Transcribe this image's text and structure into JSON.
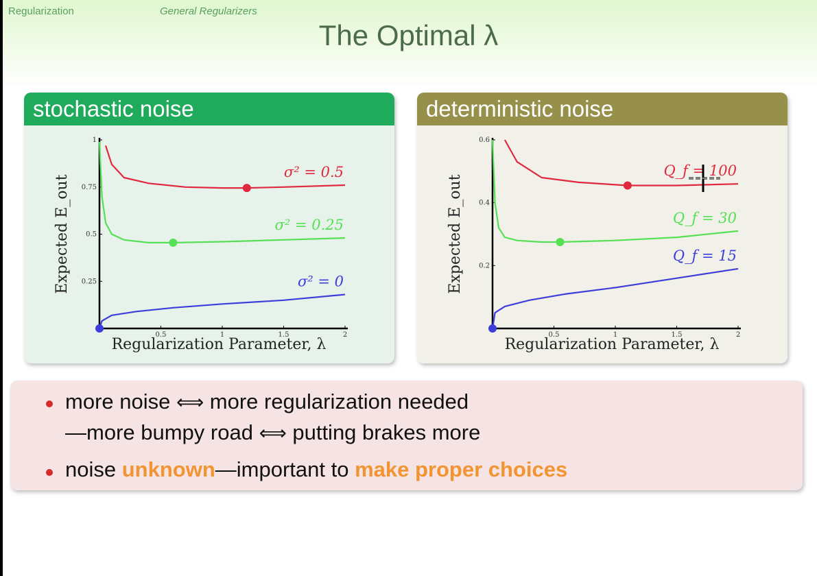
{
  "breadcrumb": {
    "section": "Regularization",
    "subsection": "General Regularizers"
  },
  "slide_title": "The Optimal λ",
  "panels": [
    {
      "header": "stochastic noise",
      "ylabel": "Expected E_out",
      "xlabel": "Regularization Parameter, λ",
      "y_ticks": [
        "1",
        "0.75",
        "0.5",
        "0.25"
      ],
      "x_ticks": [
        "0.5",
        "1",
        "1.5",
        "2"
      ],
      "curves": [
        {
          "label": "σ² = 0.5",
          "color": "#e0283f"
        },
        {
          "label": "σ² = 0.25",
          "color": "#55e055"
        },
        {
          "label": "σ² = 0",
          "color": "#3d3ddb"
        }
      ]
    },
    {
      "header": "deterministic noise",
      "ylabel": "Expected E_out",
      "xlabel": "Regularization Parameter, λ",
      "y_ticks": [
        "0.6",
        "0.4",
        "0.2"
      ],
      "x_ticks": [
        "0.5",
        "1",
        "1.5",
        "2"
      ],
      "curves": [
        {
          "label": "Q_f = 100",
          "color": "#e0283f"
        },
        {
          "label": "Q_f = 30",
          "color": "#55e055"
        },
        {
          "label": "Q_f = 15",
          "color": "#3d3ddb"
        }
      ]
    }
  ],
  "bullets": {
    "b1_a": "more noise",
    "b1_arrow": "⟺",
    "b1_b": "more regularization needed",
    "b1_c": "—more bumpy road",
    "b1_arrow2": "⟺",
    "b1_d": "putting brakes more",
    "b2_a": "noise ",
    "b2_b": "unknown",
    "b2_c": "—important to ",
    "b2_d": "make proper choices"
  },
  "chart_data": [
    {
      "type": "line",
      "title": "stochastic noise",
      "xlabel": "Regularization Parameter, λ",
      "ylabel": "Expected E_out",
      "xlim": [
        0,
        2
      ],
      "ylim": [
        0,
        1
      ],
      "series": [
        {
          "name": "σ² = 0.5",
          "x": [
            0.05,
            0.1,
            0.2,
            0.4,
            0.7,
            1.0,
            1.2,
            1.5,
            2.0
          ],
          "y": [
            0.97,
            0.87,
            0.8,
            0.77,
            0.75,
            0.745,
            0.745,
            0.75,
            0.76
          ],
          "optimum": [
            1.2,
            0.745
          ]
        },
        {
          "name": "σ² = 0.25",
          "x": [
            0.0,
            0.02,
            0.05,
            0.1,
            0.2,
            0.4,
            0.6,
            1.0,
            1.5,
            2.0
          ],
          "y": [
            0.99,
            0.7,
            0.56,
            0.5,
            0.47,
            0.455,
            0.455,
            0.46,
            0.47,
            0.48
          ],
          "optimum": [
            0.6,
            0.455
          ]
        },
        {
          "name": "σ² = 0",
          "x": [
            0.0,
            0.02,
            0.1,
            0.3,
            0.6,
            1.0,
            1.5,
            2.0
          ],
          "y": [
            0.0,
            0.04,
            0.07,
            0.09,
            0.11,
            0.13,
            0.15,
            0.18
          ],
          "optimum": [
            0.0,
            0.0
          ]
        }
      ]
    },
    {
      "type": "line",
      "title": "deterministic noise",
      "xlabel": "Regularization Parameter, λ",
      "ylabel": "Expected E_out",
      "xlim": [
        0,
        2
      ],
      "ylim": [
        0,
        0.6
      ],
      "series": [
        {
          "name": "Q_f = 100",
          "x": [
            0.1,
            0.2,
            0.4,
            0.7,
            1.1,
            1.5,
            2.0
          ],
          "y": [
            0.6,
            0.53,
            0.48,
            0.465,
            0.455,
            0.455,
            0.46
          ],
          "optimum": [
            1.1,
            0.455
          ]
        },
        {
          "name": "Q_f = 30",
          "x": [
            0.0,
            0.02,
            0.05,
            0.1,
            0.2,
            0.4,
            0.55,
            1.0,
            1.5,
            2.0
          ],
          "y": [
            0.6,
            0.4,
            0.32,
            0.29,
            0.28,
            0.275,
            0.275,
            0.28,
            0.29,
            0.31
          ],
          "optimum": [
            0.55,
            0.275
          ]
        },
        {
          "name": "Q_f = 15",
          "x": [
            0.0,
            0.02,
            0.1,
            0.3,
            0.6,
            1.0,
            1.5,
            2.0
          ],
          "y": [
            0.0,
            0.05,
            0.07,
            0.09,
            0.11,
            0.13,
            0.16,
            0.19
          ],
          "optimum": [
            0.0,
            0.0
          ]
        }
      ]
    }
  ]
}
